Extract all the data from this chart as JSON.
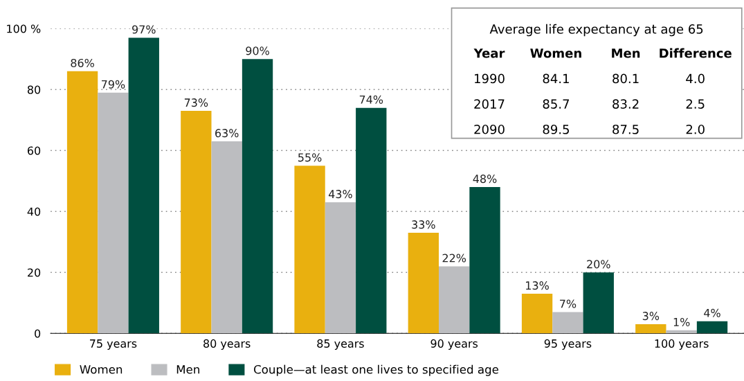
{
  "chart_data": [
    {
      "type": "bar",
      "categories": [
        "75 years",
        "80 years",
        "85 years",
        "90 years",
        "95 years",
        "100 years"
      ],
      "series": [
        {
          "name": "Women",
          "color": "#e9b00f",
          "values": [
            86,
            73,
            55,
            33,
            13,
            3
          ],
          "value_labels": [
            "86%",
            "73%",
            "55%",
            "33%",
            "13%",
            "3%"
          ]
        },
        {
          "name": "Men",
          "color": "#bcbdc0",
          "values": [
            79,
            63,
            43,
            22,
            7,
            1
          ],
          "value_labels": [
            "79%",
            "63%",
            "43%",
            "22%",
            "7%",
            "1%"
          ]
        },
        {
          "name": "Couple—at least one lives to specified age",
          "color": "#004f40",
          "values": [
            97,
            90,
            74,
            48,
            20,
            4
          ],
          "value_labels": [
            "97%",
            "90%",
            "74%",
            "48%",
            "20%",
            "4%"
          ]
        }
      ],
      "ylim": [
        0,
        100
      ],
      "yticks": [
        0,
        20,
        40,
        60,
        80,
        {
          "value": 100,
          "label": "100 %"
        }
      ],
      "grid": "y",
      "legend": "bottom"
    },
    {
      "type": "other",
      "title": "Average life expectancy at age 65",
      "annotations": [
        "Year",
        "Women",
        "Men",
        "Difference",
        "1990",
        "84.1",
        "80.1",
        "4.0",
        "2017",
        "85.7",
        "83.2",
        "2.5",
        "2090",
        "89.5",
        "87.5",
        "2.0"
      ]
    }
  ]
}
